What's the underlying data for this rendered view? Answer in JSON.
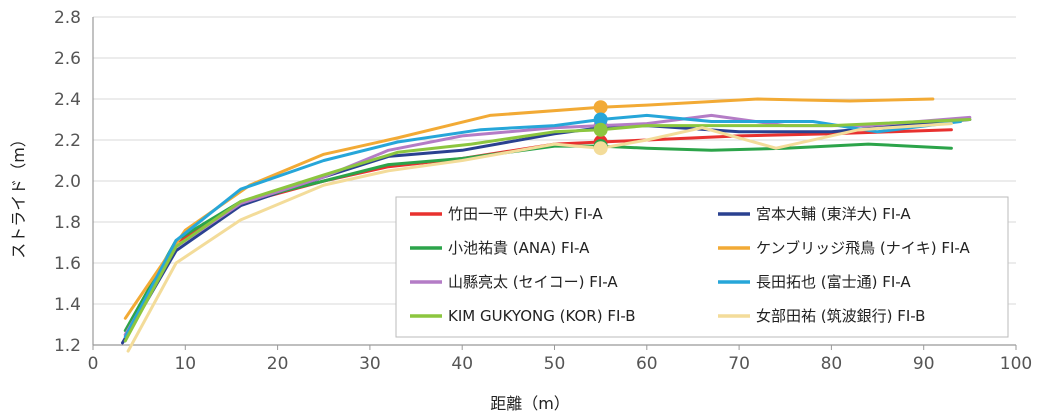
{
  "chart_data": {
    "type": "line",
    "xlabel": "距離（m）",
    "ylabel": "ストライド（m）",
    "xlim": [
      0,
      100
    ],
    "ylim": [
      1.2,
      2.8
    ],
    "x_ticks": [
      "0",
      "10",
      "20",
      "30",
      "40",
      "50",
      "60",
      "70",
      "80",
      "90",
      "100"
    ],
    "y_ticks": [
      "1.2",
      "1.4",
      "1.6",
      "1.8",
      "2.0",
      "2.2",
      "2.4",
      "2.6",
      "2.8"
    ],
    "grid": "horizontal",
    "legend_position": "bottom-right, inside plot",
    "highlight_x": 55,
    "series": [
      {
        "name": "竹田一平 (中央大) FI-A",
        "color": "#e8312f",
        "x": [
          3.5,
          9,
          16,
          25,
          32,
          40,
          50,
          55,
          60,
          70,
          80,
          93
        ],
        "y": [
          1.25,
          1.7,
          1.89,
          2.0,
          2.07,
          2.11,
          2.18,
          2.19,
          2.2,
          2.22,
          2.23,
          2.25
        ]
      },
      {
        "name": "宮本大輔 (東洋大) FI-A",
        "color": "#2a4190",
        "x": [
          3.2,
          9,
          16,
          25,
          32,
          40,
          50,
          55,
          60,
          70,
          80,
          95
        ],
        "y": [
          1.21,
          1.66,
          1.88,
          2.02,
          2.12,
          2.15,
          2.23,
          2.26,
          2.27,
          2.24,
          2.24,
          2.3
        ]
      },
      {
        "name": "小池祐貴 (ANA) FI-A",
        "color": "#2ca44a",
        "x": [
          3.5,
          9,
          16,
          25,
          32,
          40,
          50,
          55,
          60,
          67,
          75,
          84,
          93
        ],
        "y": [
          1.27,
          1.71,
          1.9,
          2.0,
          2.08,
          2.11,
          2.17,
          2.17,
          2.16,
          2.15,
          2.16,
          2.18,
          2.16
        ]
      },
      {
        "name": "ケンブリッジ飛鳥 (ナイキ) FI-A",
        "color": "#f2aa35",
        "x": [
          3.5,
          10,
          17,
          25,
          33,
          43,
          55,
          60,
          72,
          82,
          91
        ],
        "y": [
          1.33,
          1.76,
          1.98,
          2.13,
          2.21,
          2.32,
          2.36,
          2.37,
          2.4,
          2.39,
          2.4
        ]
      },
      {
        "name": "山縣亮太 (セイコー) FI-A",
        "color": "#b47cc6",
        "x": [
          3.5,
          9,
          16,
          25,
          32,
          40,
          50,
          55,
          60,
          67,
          75,
          84,
          95
        ],
        "y": [
          1.25,
          1.68,
          1.89,
          2.02,
          2.15,
          2.22,
          2.26,
          2.27,
          2.28,
          2.32,
          2.27,
          2.27,
          2.31
        ]
      },
      {
        "name": "長田拓也 (富士通) FI-A",
        "color": "#26a6d9",
        "x": [
          3.5,
          9,
          16,
          25,
          33,
          42,
          50,
          55,
          60,
          67,
          78,
          85,
          94
        ],
        "y": [
          1.24,
          1.71,
          1.96,
          2.1,
          2.19,
          2.25,
          2.27,
          2.3,
          2.32,
          2.29,
          2.29,
          2.24,
          2.29
        ]
      },
      {
        "name": "KIM GUKYONG (KOR) FI-B",
        "color": "#8cc63f",
        "x": [
          3.5,
          9,
          16,
          25,
          33,
          41,
          50,
          55,
          60,
          70,
          80,
          95
        ],
        "y": [
          1.22,
          1.68,
          1.9,
          2.03,
          2.14,
          2.18,
          2.24,
          2.25,
          2.27,
          2.27,
          2.27,
          2.3
        ]
      },
      {
        "name": "女部田祐 (筑波銀行) FI-B",
        "color": "#f3dc9a",
        "x": [
          3.8,
          9,
          16,
          25,
          32,
          40,
          50,
          55,
          60,
          66,
          74,
          83,
          93
        ],
        "y": [
          1.17,
          1.6,
          1.81,
          1.98,
          2.05,
          2.1,
          2.18,
          2.16,
          2.2,
          2.26,
          2.16,
          2.25,
          2.28
        ]
      }
    ]
  }
}
